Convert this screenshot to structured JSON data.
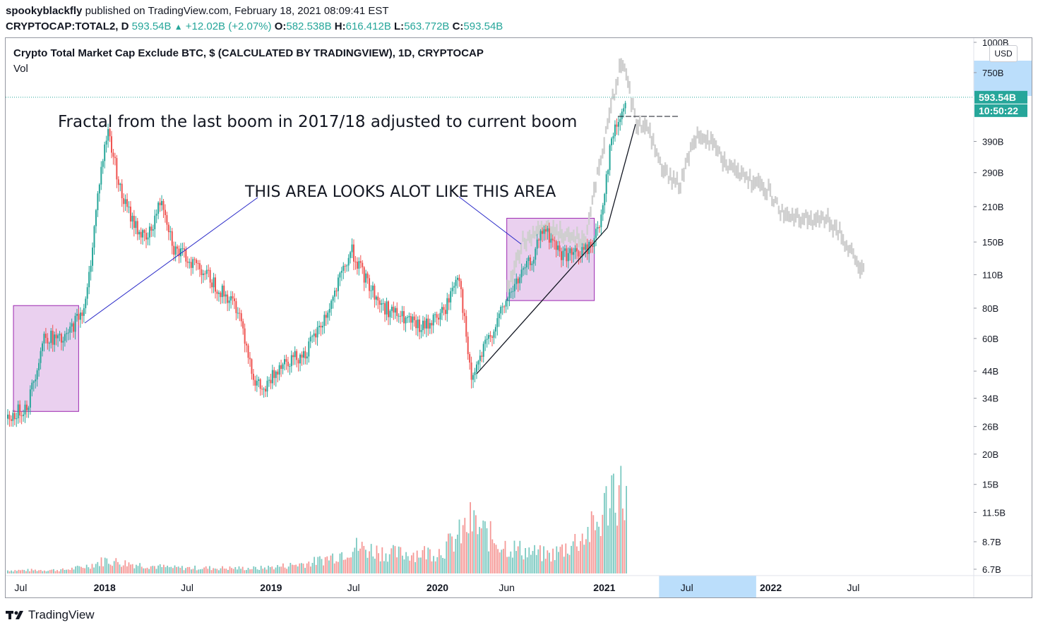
{
  "header": {
    "author": "spookyblackfly",
    "published": "published on TradingView.com, February 18, 2021 08:09:41 EST",
    "symbol": "CRYPTOCAP:TOTAL2, D",
    "last": "593.54B",
    "change": "+12.02B (+2.07%)",
    "o_label": "O:",
    "o_value": "582.538B",
    "h_label": "H:",
    "h_value": "616.412B",
    "l_label": "L:",
    "l_value": "563.772B",
    "c_label": "C:",
    "c_value": "593.54B"
  },
  "chart_title": "Crypto Total Market Cap Exclude BTC, $ (CALCULATED BY TRADINGVIEW), 1D, CRYPTOCAP",
  "vol_label": "Vol",
  "currency_badge": "USD",
  "price_badge": "593.54B",
  "time_badge": "10:50:22",
  "annotations": {
    "fractal": "Fractal from the last boom in 2017/18 adjusted to current boom",
    "area": "THIS AREA LOOKS ALOT LIKE THIS AREA"
  },
  "footer_brand": "TradingView",
  "colors": {
    "up": "#26a69a",
    "down": "#ef5350",
    "fractal": "#cfcfcf",
    "highlight_fill": "#e6c8ec",
    "highlight_stroke": "#9c27b0",
    "annotation_line": "#2929c8",
    "trend_line": "#131722",
    "axis_highlight": "#bbdefb"
  },
  "chart_data": {
    "type": "candlestick",
    "y_scale": "log",
    "ylim": [
      6.7,
      1000
    ],
    "y_ticks": [
      "1000B",
      "750B",
      "390B",
      "290B",
      "210B",
      "150B",
      "110B",
      "80B",
      "60B",
      "44B",
      "34B",
      "26B",
      "20B",
      "15B",
      "11.5B",
      "8.7B",
      "6.7B"
    ],
    "y_tick_values": [
      1000,
      750,
      390,
      290,
      210,
      150,
      110,
      80,
      60,
      44,
      34,
      26,
      20,
      15,
      11.5,
      8.7,
      6.7
    ],
    "x_ticks": [
      "Jul",
      "2018",
      "Jul",
      "2019",
      "Jul",
      "2020",
      "Jun",
      "2021",
      "Jul",
      "2022",
      "Jul"
    ],
    "x_tick_dates": [
      "2017-07",
      "2018-01",
      "2018-07",
      "2019-01",
      "2019-07",
      "2020-01",
      "2020-06",
      "2021-01",
      "2021-07",
      "2022-01",
      "2022-07"
    ],
    "x_bold": [
      false,
      true,
      false,
      true,
      false,
      true,
      false,
      true,
      false,
      true,
      false
    ],
    "price_path_dates": [
      "2017-06",
      "2017-07-15",
      "2017-08-20",
      "2017-10",
      "2017-11-20",
      "2017-12-20",
      "2018-01-07",
      "2018-02-06",
      "2018-03-05",
      "2018-04-01",
      "2018-05-05",
      "2018-06-01",
      "2018-07-25",
      "2018-09-10",
      "2018-10-20",
      "2018-11-25",
      "2018-12-15",
      "2019-01-20",
      "2019-03-15",
      "2019-05-01",
      "2019-06-25",
      "2019-07-20",
      "2019-08-30",
      "2019-10-20",
      "2019-11-25",
      "2020-01-15",
      "2020-02-15",
      "2020-03-13",
      "2020-04-15",
      "2020-05-20",
      "2020-06-10",
      "2020-07-25",
      "2020-08-20",
      "2020-09-25",
      "2020-10-25",
      "2020-11-25",
      "2020-12-20",
      "2021-01-15",
      "2021-02-18"
    ],
    "price_path_values": [
      28,
      32,
      62,
      58,
      85,
      280,
      440,
      230,
      180,
      150,
      230,
      140,
      120,
      95,
      80,
      40,
      36,
      48,
      52,
      75,
      140,
      110,
      82,
      72,
      66,
      78,
      115,
      40,
      57,
      78,
      95,
      128,
      170,
      135,
      133,
      140,
      175,
      400,
      593.54
    ],
    "fractal_path_dates": [
      "2020-06-01",
      "2020-07-05",
      "2020-08-15",
      "2020-10-01",
      "2020-11-20",
      "2020-12-15",
      "2021-01-15",
      "2021-02-01",
      "2021-02-15",
      "2021-03-10",
      "2021-04-05",
      "2021-05-05",
      "2021-06-15",
      "2021-07-20",
      "2021-08-25",
      "2021-09-25",
      "2021-11-01",
      "2021-12-10",
      "2022-01-25",
      "2022-03-10",
      "2022-04-25",
      "2022-05-25",
      "2022-06-20",
      "2022-07-25"
    ],
    "fractal_path_values": [
      95,
      150,
      175,
      160,
      150,
      290,
      550,
      780,
      750,
      470,
      440,
      300,
      260,
      420,
      380,
      310,
      280,
      265,
      200,
      185,
      190,
      170,
      140,
      110
    ],
    "volume_ylim": [
      0,
      26
    ],
    "volume_path_dates": [
      "2017-06",
      "2017-10",
      "2018-01",
      "2018-06",
      "2018-12",
      "2019-04",
      "2019-07",
      "2019-10",
      "2020-01",
      "2020-03-13",
      "2020-06",
      "2020-09",
      "2020-11",
      "2020-12-20",
      "2021-01-15",
      "2021-02-18"
    ],
    "volume_path_values": [
      0.6,
      0.7,
      2.6,
      1.1,
      1.0,
      2.2,
      5.2,
      3.8,
      4.2,
      10,
      5.2,
      3.5,
      6.5,
      9.8,
      17,
      15
    ],
    "last_price": 593.54
  }
}
